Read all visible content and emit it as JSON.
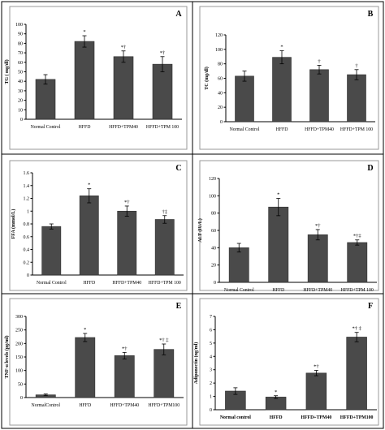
{
  "chart_data": [
    {
      "type": "bar",
      "panel_label": "A",
      "ylabel": "TG ( mg/dl)",
      "categories": [
        "Normal Control",
        "HFFD",
        "HFFD+TPM40",
        "HFFD+TPM 100"
      ],
      "values": [
        42,
        82,
        66,
        58
      ],
      "errors": [
        5,
        6,
        6,
        8
      ],
      "annotations": [
        "",
        "*",
        "*†",
        "*†"
      ],
      "ylim": [
        0,
        100
      ],
      "yticks": [
        0,
        10,
        20,
        30,
        40,
        50,
        60,
        70,
        80,
        90,
        100
      ],
      "xtick_bold": false
    },
    {
      "type": "bar",
      "panel_label": "B",
      "ylabel": "TC (mg/dl)",
      "categories": [
        "Normal Control",
        "HFFD",
        "HFFD+TPM40",
        "HFFD+TPM 100"
      ],
      "values": [
        63,
        89,
        72,
        65
      ],
      "errors": [
        7,
        9,
        6,
        7
      ],
      "annotations": [
        "",
        "*",
        "†",
        "†"
      ],
      "ylim": [
        0,
        120
      ],
      "yticks": [
        0,
        20,
        40,
        60,
        80,
        100,
        120
      ],
      "xtick_bold": false
    },
    {
      "type": "bar",
      "panel_label": "C",
      "ylabel": "FFA (mmol/L)",
      "categories": [
        "Normal Control",
        "HFFD",
        "HFFD+TPM40",
        "HFFD+TPM 100"
      ],
      "values": [
        0.76,
        1.24,
        1.0,
        0.87
      ],
      "errors": [
        0.04,
        0.11,
        0.08,
        0.06
      ],
      "annotations": [
        "",
        "*",
        "*†",
        "†‡"
      ],
      "ylim": [
        0,
        1.6
      ],
      "yticks": [
        0,
        0.2,
        0.4,
        0.6,
        0.8,
        1,
        1.2,
        1.4,
        1.6
      ],
      "xtick_bold": false
    },
    {
      "type": "bar",
      "panel_label": "D",
      "ylabel": "ALT (IU/L)",
      "categories": [
        "Normal Control",
        "HFFD",
        "HFFD+TPM40",
        "HFFD+TPM 100"
      ],
      "values": [
        40,
        87,
        55,
        46
      ],
      "errors": [
        5,
        10,
        6,
        3
      ],
      "annotations": [
        "",
        "*",
        "*†",
        "*†‡"
      ],
      "ylim": [
        0,
        120
      ],
      "yticks": [
        0,
        20,
        40,
        60,
        80,
        100,
        120
      ],
      "xtick_bold": false
    },
    {
      "type": "bar",
      "panel_label": "E",
      "ylabel": "TNF-α levels (pg/ml)",
      "categories": [
        "NormalControl",
        "HFFD",
        "HFFD+TPM40",
        "HFFD+TPM100"
      ],
      "values": [
        10,
        222,
        155,
        178
      ],
      "errors": [
        3,
        15,
        12,
        20
      ],
      "annotations": [
        "",
        "*",
        "*†",
        "*† ‡"
      ],
      "ylim": [
        0,
        300
      ],
      "yticks": [
        0,
        50,
        100,
        150,
        200,
        250,
        300
      ],
      "xtick_bold": false
    },
    {
      "type": "bar",
      "panel_label": "F",
      "ylabel": "Adiponectin (ng/ml)",
      "categories": [
        "Normal control",
        "HFFD",
        "HFFD+TPM40",
        "HFFD+TPM100"
      ],
      "values": [
        1.4,
        0.95,
        2.75,
        5.45
      ],
      "errors": [
        0.25,
        0.1,
        0.2,
        0.35
      ],
      "annotations": [
        "",
        "*",
        "*†",
        "*† ‡"
      ],
      "ylim": [
        0,
        7
      ],
      "yticks": [
        0,
        1,
        2,
        3,
        4,
        5,
        6,
        7
      ],
      "xtick_bold": true
    }
  ]
}
